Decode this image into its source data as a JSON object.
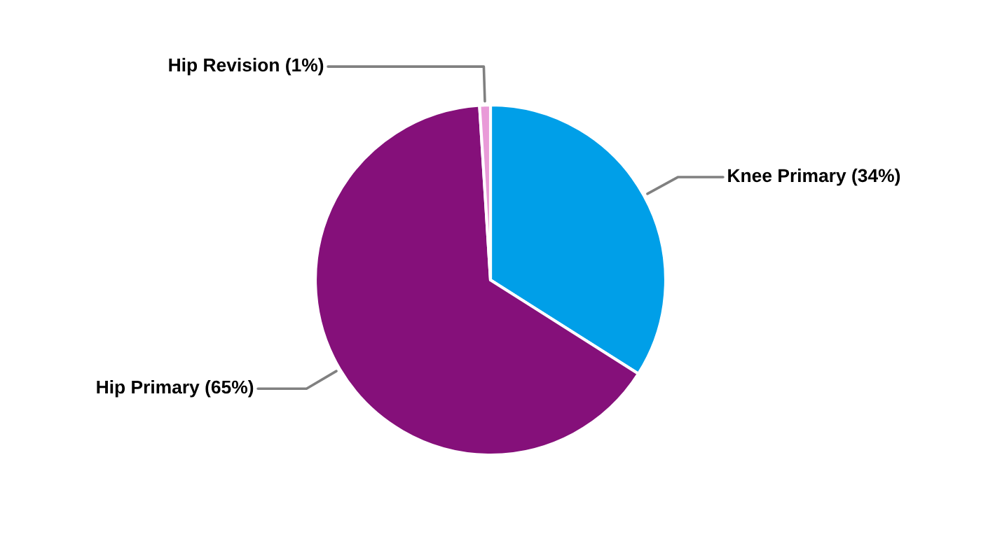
{
  "chart_data": {
    "type": "pie",
    "categories": [
      "Knee Primary",
      "Hip Primary",
      "Hip Revision"
    ],
    "values": [
      34,
      65,
      1
    ],
    "value_labels": [
      "(34%)",
      "(65%)",
      "(1%)"
    ],
    "colors": [
      "#009fe8",
      "#85107a",
      "#e99ad8"
    ]
  }
}
